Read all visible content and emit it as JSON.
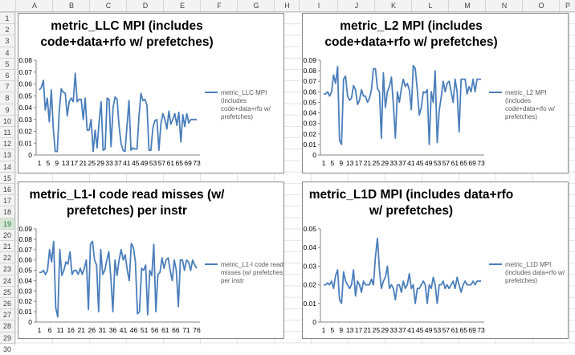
{
  "columns": [
    "A",
    "B",
    "C",
    "D",
    "E",
    "F",
    "G",
    "H",
    "I",
    "J",
    "K",
    "L",
    "M",
    "N",
    "O",
    "P"
  ],
  "rows": [
    "1",
    "2",
    "3",
    "4",
    "5",
    "6",
    "7",
    "8",
    "9",
    "10",
    "11",
    "12",
    "13",
    "14",
    "15",
    "16",
    "17",
    "18",
    "19",
    "20",
    "21",
    "22",
    "23",
    "24",
    "25",
    "26",
    "27",
    "28",
    "29",
    "30"
  ],
  "selected_row": "19",
  "colors": {
    "series": "#4a7ebb",
    "axis": "#868686"
  },
  "chart_data": [
    {
      "type": "line",
      "title_lines": [
        "metric_LLC MPI (includes",
        "code+data+rfo w/ prefetches)"
      ],
      "legend_lines": [
        "metric_LLC MPI",
        "(includes",
        "code+data+rfo w/",
        "prefetches)"
      ],
      "legend_position": "right",
      "ylim": [
        0,
        0.08
      ],
      "yticks": [
        "0",
        "0.01",
        "0.02",
        "0.03",
        "0.04",
        "0.05",
        "0.06",
        "0.07",
        "0.08"
      ],
      "xtick_labels": [
        "1",
        "5",
        "9",
        "13",
        "17",
        "21",
        "25",
        "29",
        "33",
        "37",
        "41",
        "45",
        "49",
        "53",
        "57",
        "61",
        "65",
        "69",
        "73"
      ],
      "series": [
        {
          "values": [
            0.055,
            0.057,
            0.063,
            0.038,
            0.048,
            0.028,
            0.055,
            0.022,
            0.003,
            0.003,
            0.037,
            0.056,
            0.053,
            0.052,
            0.033,
            0.045,
            0.048,
            0.045,
            0.069,
            0.045,
            0.047,
            0.047,
            0.03,
            0.048,
            0.021,
            0.021,
            0.03,
            0.003,
            0.021,
            0.006,
            0.028,
            0.045,
            0.004,
            0.005,
            0.048,
            0.047,
            0.007,
            0.04,
            0.049,
            0.047,
            0.025,
            0.01,
            0.004,
            0.003,
            0.025,
            0.046,
            0.004,
            0.006,
            0.005,
            0.005,
            0.033,
            0.052,
            0.046,
            0.047,
            0.042,
            0.004,
            0.004,
            0.023,
            0.029,
            0.03,
            0.004,
            0.026,
            0.035,
            0.03,
            0.022,
            0.037,
            0.026,
            0.03,
            0.035,
            0.025,
            0.036,
            0.011,
            0.034,
            0.024,
            0.035,
            0.027,
            0.03,
            0.03,
            0.03,
            0.03
          ]
        }
      ]
    },
    {
      "type": "line",
      "title_lines": [
        "metric_L2 MPI (includes",
        "code+data+rfo w/ prefetches)"
      ],
      "legend_lines": [
        "metric_L2 MPI",
        "(includes",
        "code+data+rfo w/",
        "prefetches)"
      ],
      "legend_position": "right",
      "ylim": [
        0,
        0.09
      ],
      "yticks": [
        "0",
        "0.01",
        "0.02",
        "0.03",
        "0.04",
        "0.05",
        "0.06",
        "0.07",
        "0.08",
        "0.09"
      ],
      "xtick_labels": [
        "1",
        "5",
        "9",
        "13",
        "17",
        "21",
        "25",
        "29",
        "33",
        "37",
        "41",
        "45",
        "49",
        "53",
        "57",
        "61",
        "65",
        "69",
        "73"
      ],
      "series": [
        {
          "values": [
            0.058,
            0.058,
            0.06,
            0.056,
            0.06,
            0.076,
            0.068,
            0.084,
            0.014,
            0.01,
            0.072,
            0.075,
            0.056,
            0.052,
            0.054,
            0.066,
            0.062,
            0.048,
            0.052,
            0.062,
            0.056,
            0.056,
            0.05,
            0.054,
            0.062,
            0.082,
            0.082,
            0.063,
            0.06,
            0.016,
            0.078,
            0.045,
            0.06,
            0.065,
            0.074,
            0.048,
            0.016,
            0.06,
            0.05,
            0.063,
            0.072,
            0.065,
            0.068,
            0.062,
            0.043,
            0.085,
            0.082,
            0.062,
            0.038,
            0.045,
            0.06,
            0.059,
            0.062,
            0.01,
            0.06,
            0.05,
            0.08,
            0.012,
            0.042,
            0.055,
            0.07,
            0.06,
            0.068,
            0.07,
            0.06,
            0.05,
            0.072,
            0.06,
            0.022,
            0.072,
            0.072,
            0.072,
            0.058,
            0.065,
            0.06,
            0.072,
            0.06,
            0.072,
            0.072,
            0.072
          ]
        }
      ]
    },
    {
      "type": "line",
      "title_lines": [
        "metric_L1-I code read misses (w/",
        "prefetches) per instr"
      ],
      "legend_lines": [
        "metric_L1-I code read",
        "misses (w/ prefetches)",
        "per instr"
      ],
      "legend_position": "right",
      "ylim": [
        0,
        0.09
      ],
      "yticks": [
        "0",
        "0.01",
        "0.02",
        "0.03",
        "0.04",
        "0.05",
        "0.06",
        "0.07",
        "0.08",
        "0.09"
      ],
      "xtick_labels": [
        "1",
        "6",
        "11",
        "16",
        "21",
        "26",
        "31",
        "36",
        "41",
        "46",
        "51",
        "56",
        "61",
        "66",
        "71",
        "76"
      ],
      "series": [
        {
          "values": [
            0.048,
            0.048,
            0.05,
            0.046,
            0.05,
            0.07,
            0.058,
            0.078,
            0.014,
            0.005,
            0.07,
            0.045,
            0.05,
            0.058,
            0.056,
            0.068,
            0.046,
            0.05,
            0.05,
            0.046,
            0.052,
            0.046,
            0.052,
            0.06,
            0.012,
            0.075,
            0.078,
            0.06,
            0.055,
            0.01,
            0.07,
            0.046,
            0.05,
            0.06,
            0.068,
            0.042,
            0.01,
            0.06,
            0.045,
            0.06,
            0.07,
            0.06,
            0.065,
            0.05,
            0.04,
            0.076,
            0.072,
            0.058,
            0.008,
            0.01,
            0.052,
            0.05,
            0.055,
            0.007,
            0.05,
            0.045,
            0.075,
            0.01,
            0.046,
            0.048,
            0.062,
            0.052,
            0.06,
            0.062,
            0.05,
            0.04,
            0.06,
            0.05,
            0.015,
            0.06,
            0.06,
            0.05,
            0.06,
            0.058,
            0.05,
            0.06,
            0.055,
            0.052
          ]
        }
      ]
    },
    {
      "type": "line",
      "title_lines": [
        "metric_L1D MPI (includes data+rfo",
        "w/ prefetches)"
      ],
      "legend_lines": [
        "metric_L1D MPI",
        "(includes data+rfo w/",
        "prefetches)"
      ],
      "legend_position": "right",
      "ylim": [
        0,
        0.05
      ],
      "yticks": [
        "0",
        "0.01",
        "0.02",
        "0.03",
        "0.04",
        "0.05"
      ],
      "xtick_labels": [
        "1",
        "5",
        "9",
        "13",
        "17",
        "21",
        "25",
        "29",
        "33",
        "37",
        "41",
        "45",
        "49",
        "53",
        "57",
        "61",
        "65",
        "69",
        "73"
      ],
      "series": [
        {
          "values": [
            0.02,
            0.02,
            0.021,
            0.02,
            0.022,
            0.018,
            0.025,
            0.028,
            0.012,
            0.01,
            0.027,
            0.022,
            0.02,
            0.018,
            0.02,
            0.028,
            0.014,
            0.022,
            0.02,
            0.016,
            0.022,
            0.02,
            0.02,
            0.02,
            0.023,
            0.02,
            0.035,
            0.045,
            0.028,
            0.018,
            0.022,
            0.024,
            0.03,
            0.018,
            0.02,
            0.018,
            0.012,
            0.02,
            0.02,
            0.016,
            0.022,
            0.018,
            0.02,
            0.026,
            0.018,
            0.02,
            0.01,
            0.018,
            0.018,
            0.02,
            0.022,
            0.02,
            0.01,
            0.02,
            0.018,
            0.024,
            0.02,
            0.01,
            0.02,
            0.02,
            0.022,
            0.018,
            0.02,
            0.018,
            0.02,
            0.022,
            0.018,
            0.024,
            0.02,
            0.016,
            0.02,
            0.022,
            0.02,
            0.02,
            0.02,
            0.022,
            0.02,
            0.022,
            0.022,
            0.022
          ]
        }
      ]
    }
  ]
}
